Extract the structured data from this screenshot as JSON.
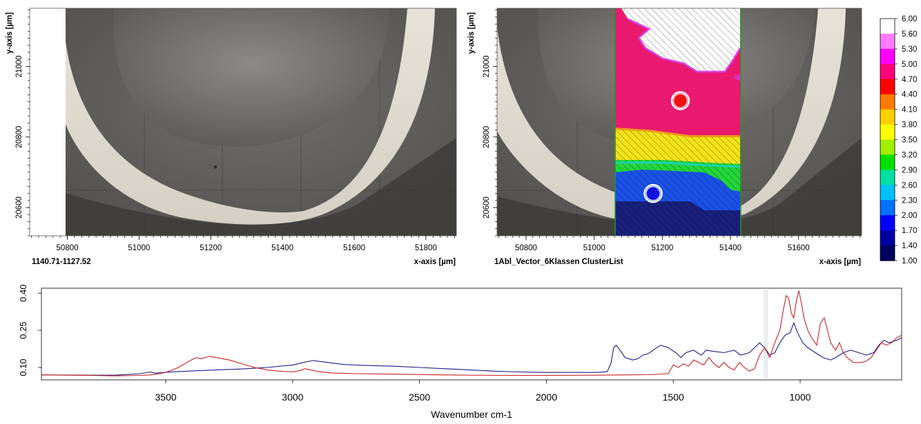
{
  "left_map": {
    "caption": "1140.71-1127.52",
    "xlabel": "x-axis [µm]",
    "ylabel": "y-axis [µm]",
    "x_ticks": [
      50800,
      51000,
      51200,
      51400,
      51600,
      51800
    ],
    "y_ticks": [
      20600,
      20800,
      21000
    ],
    "x_range": [
      50695,
      51885
    ],
    "y_range": [
      20520,
      21165
    ],
    "image_left_edge_x": 50758,
    "marker": {
      "x": 51213,
      "y": 20715,
      "color": "#2a2a2a"
    }
  },
  "right_map": {
    "caption": "1Abl_Vector_6Klassen ClusterList",
    "xlabel": "x-axis [µm]",
    "ylabel": "y-axis [µm]",
    "x_ticks": [
      50800,
      51000,
      51200,
      51400,
      51600
    ],
    "y_ticks": [
      20600,
      20800,
      21000
    ],
    "x_range": [
      50715,
      51785
    ],
    "y_range": [
      20520,
      21165
    ],
    "cluster_strip_x": [
      51093,
      51456
    ],
    "markers": [
      {
        "name": "red-marker",
        "x": 51253,
        "y": 20903,
        "color": "#ee1111"
      },
      {
        "name": "blue-marker",
        "x": 51173,
        "y": 20640,
        "color": "#1111dd"
      }
    ],
    "cluster_bands": [
      {
        "name": "cluster-white-hatched",
        "color": "#ffffff",
        "hatched": true
      },
      {
        "name": "cluster-pink",
        "color": "#e8196e",
        "hatched": false
      },
      {
        "name": "cluster-yellow",
        "color": "#f2e21a",
        "hatched": true
      },
      {
        "name": "cluster-green",
        "color": "#22d63a",
        "hatched": true
      },
      {
        "name": "cluster-blue",
        "color": "#1a52e8",
        "hatched": true
      },
      {
        "name": "cluster-navy",
        "color": "#18207c",
        "hatched": true
      }
    ]
  },
  "colorbar": {
    "labels": [
      "6.00",
      "5.60",
      "5.30",
      "5.00",
      "4.70",
      "4.40",
      "4.10",
      "3.80",
      "3.50",
      "3.20",
      "2.90",
      "2.60",
      "2.30",
      "2.00",
      "1.70",
      "1.40",
      "1.00"
    ],
    "colors": [
      "#ffffff",
      "#ff7bff",
      "#ff00ff",
      "#ff007a",
      "#ff0000",
      "#ff7a00",
      "#ffd000",
      "#ffff00",
      "#a0f000",
      "#00e000",
      "#00e0a0",
      "#00c0ff",
      "#0070ff",
      "#0000ff",
      "#0000a0",
      "#000060"
    ]
  },
  "chart_data": {
    "type": "line",
    "title": "",
    "xlabel": "Wavenumber cm-1",
    "ylabel": "",
    "x_reversed": true,
    "xlim": [
      3990,
      600
    ],
    "ylim": [
      0.05,
      0.42
    ],
    "x_ticks": [
      3500,
      3000,
      2500,
      2000,
      1500,
      1000
    ],
    "y_ticks": [
      "0.10",
      "0.25",
      "0.40"
    ],
    "series": [
      {
        "color": "#1a1a8c",
        "points": [
          [
            3990,
            0.07
          ],
          [
            3800,
            0.069
          ],
          [
            3700,
            0.069
          ],
          [
            3600,
            0.075
          ],
          [
            3560,
            0.082
          ],
          [
            3540,
            0.077
          ],
          [
            3500,
            0.081
          ],
          [
            3400,
            0.086
          ],
          [
            3300,
            0.09
          ],
          [
            3200,
            0.094
          ],
          [
            3100,
            0.1
          ],
          [
            3000,
            0.11
          ],
          [
            2950,
            0.122
          ],
          [
            2920,
            0.128
          ],
          [
            2880,
            0.123
          ],
          [
            2800,
            0.112
          ],
          [
            2700,
            0.108
          ],
          [
            2600,
            0.105
          ],
          [
            2500,
            0.1
          ],
          [
            2400,
            0.095
          ],
          [
            2300,
            0.09
          ],
          [
            2200,
            0.085
          ],
          [
            2100,
            0.082
          ],
          [
            2000,
            0.08
          ],
          [
            1900,
            0.08
          ],
          [
            1800,
            0.08
          ],
          [
            1760,
            0.083
          ],
          [
            1745,
            0.12
          ],
          [
            1735,
            0.18
          ],
          [
            1725,
            0.19
          ],
          [
            1710,
            0.17
          ],
          [
            1690,
            0.14
          ],
          [
            1660,
            0.13
          ],
          [
            1640,
            0.135
          ],
          [
            1620,
            0.15
          ],
          [
            1600,
            0.155
          ],
          [
            1580,
            0.17
          ],
          [
            1550,
            0.19
          ],
          [
            1520,
            0.18
          ],
          [
            1490,
            0.16
          ],
          [
            1470,
            0.14
          ],
          [
            1450,
            0.16
          ],
          [
            1420,
            0.17
          ],
          [
            1390,
            0.15
          ],
          [
            1370,
            0.17
          ],
          [
            1340,
            0.165
          ],
          [
            1300,
            0.16
          ],
          [
            1260,
            0.17
          ],
          [
            1235,
            0.15
          ],
          [
            1200,
            0.16
          ],
          [
            1160,
            0.2
          ],
          [
            1140,
            0.18
          ],
          [
            1120,
            0.15
          ],
          [
            1100,
            0.16
          ],
          [
            1080,
            0.2
          ],
          [
            1060,
            0.23
          ],
          [
            1040,
            0.24
          ],
          [
            1025,
            0.28
          ],
          [
            1010,
            0.24
          ],
          [
            990,
            0.2
          ],
          [
            970,
            0.18
          ],
          [
            940,
            0.16
          ],
          [
            910,
            0.14
          ],
          [
            880,
            0.13
          ],
          [
            860,
            0.14
          ],
          [
            830,
            0.16
          ],
          [
            800,
            0.17
          ],
          [
            770,
            0.16
          ],
          [
            740,
            0.15
          ],
          [
            710,
            0.16
          ],
          [
            690,
            0.19
          ],
          [
            670,
            0.21
          ],
          [
            650,
            0.2
          ],
          [
            620,
            0.21
          ],
          [
            600,
            0.22
          ]
        ]
      },
      {
        "color": "#c82020",
        "points": [
          [
            3990,
            0.07
          ],
          [
            3800,
            0.068
          ],
          [
            3700,
            0.066
          ],
          [
            3600,
            0.068
          ],
          [
            3560,
            0.07
          ],
          [
            3500,
            0.08
          ],
          [
            3450,
            0.1
          ],
          [
            3400,
            0.13
          ],
          [
            3380,
            0.14
          ],
          [
            3360,
            0.135
          ],
          [
            3330,
            0.145
          ],
          [
            3300,
            0.14
          ],
          [
            3250,
            0.13
          ],
          [
            3200,
            0.115
          ],
          [
            3150,
            0.1
          ],
          [
            3100,
            0.09
          ],
          [
            3050,
            0.085
          ],
          [
            3000,
            0.082
          ],
          [
            2970,
            0.088
          ],
          [
            2950,
            0.095
          ],
          [
            2930,
            0.09
          ],
          [
            2900,
            0.084
          ],
          [
            2850,
            0.078
          ],
          [
            2750,
            0.075
          ],
          [
            2600,
            0.073
          ],
          [
            2400,
            0.07
          ],
          [
            2200,
            0.068
          ],
          [
            2000,
            0.068
          ],
          [
            1800,
            0.069
          ],
          [
            1700,
            0.07
          ],
          [
            1600,
            0.071
          ],
          [
            1520,
            0.075
          ],
          [
            1500,
            0.11
          ],
          [
            1480,
            0.1
          ],
          [
            1460,
            0.115
          ],
          [
            1440,
            0.105
          ],
          [
            1420,
            0.13
          ],
          [
            1400,
            0.12
          ],
          [
            1380,
            0.11
          ],
          [
            1360,
            0.14
          ],
          [
            1340,
            0.115
          ],
          [
            1320,
            0.1
          ],
          [
            1300,
            0.12
          ],
          [
            1280,
            0.1
          ],
          [
            1260,
            0.09
          ],
          [
            1240,
            0.12
          ],
          [
            1220,
            0.1
          ],
          [
            1200,
            0.085
          ],
          [
            1180,
            0.095
          ],
          [
            1160,
            0.15
          ],
          [
            1140,
            0.18
          ],
          [
            1120,
            0.14
          ],
          [
            1100,
            0.2
          ],
          [
            1080,
            0.25
          ],
          [
            1065,
            0.34
          ],
          [
            1055,
            0.39
          ],
          [
            1045,
            0.38
          ],
          [
            1035,
            0.32
          ],
          [
            1025,
            0.3
          ],
          [
            1015,
            0.37
          ],
          [
            1005,
            0.41
          ],
          [
            995,
            0.36
          ],
          [
            985,
            0.3
          ],
          [
            970,
            0.25
          ],
          [
            955,
            0.22
          ],
          [
            935,
            0.19
          ],
          [
            920,
            0.28
          ],
          [
            905,
            0.3
          ],
          [
            895,
            0.26
          ],
          [
            880,
            0.2
          ],
          [
            860,
            0.17
          ],
          [
            845,
            0.2
          ],
          [
            830,
            0.16
          ],
          [
            815,
            0.14
          ],
          [
            790,
            0.12
          ],
          [
            760,
            0.12
          ],
          [
            740,
            0.125
          ],
          [
            720,
            0.14
          ],
          [
            700,
            0.17
          ],
          [
            680,
            0.2
          ],
          [
            660,
            0.19
          ],
          [
            640,
            0.2
          ],
          [
            620,
            0.22
          ],
          [
            600,
            0.23
          ]
        ]
      }
    ]
  }
}
